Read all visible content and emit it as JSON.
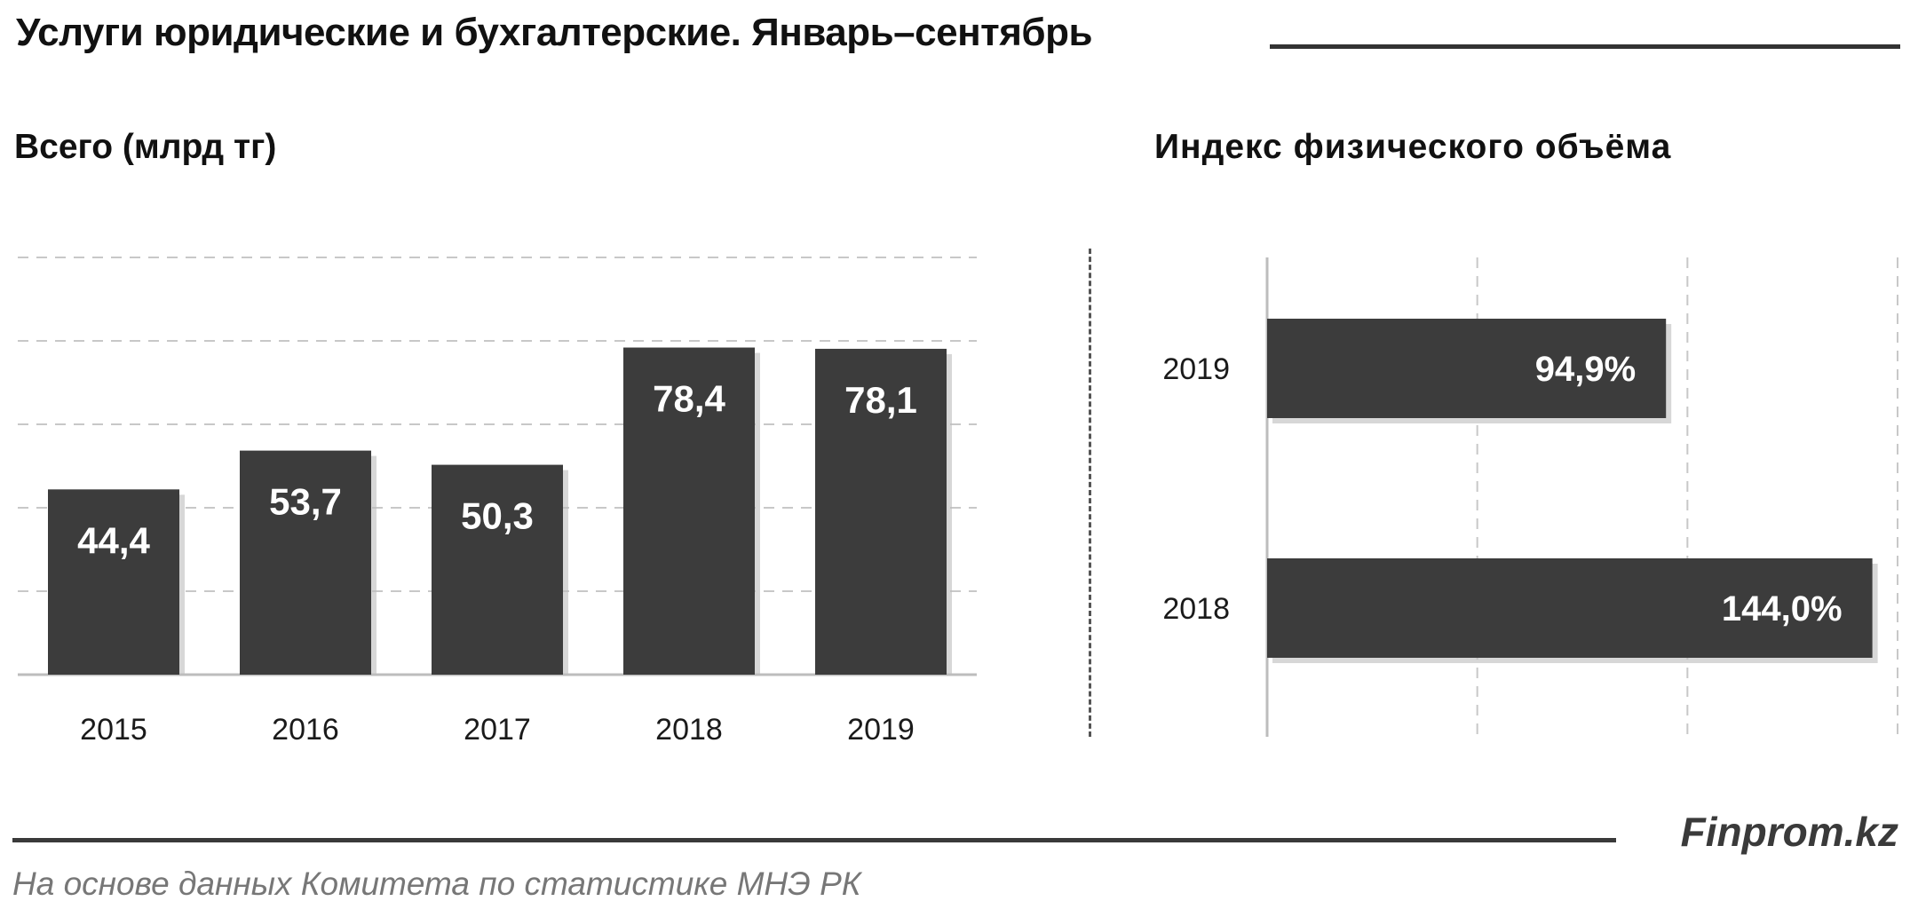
{
  "title": "Услуги юридические и бухгалтерские. Январь–сентябрь",
  "source": "На основе данных Комитета по статистике МНЭ РК",
  "brand": "Finprom.kz",
  "colors": {
    "bar": "#3c3c3c",
    "grid": "#c8c8c8",
    "label": "#ffffff"
  },
  "chart_data": [
    {
      "type": "bar",
      "title": "Всего (млрд тг)",
      "categories": [
        "2015",
        "2016",
        "2017",
        "2018",
        "2019"
      ],
      "values": [
        44.4,
        53.7,
        50.3,
        78.4,
        78.1
      ],
      "labels": [
        "44,4",
        "53,7",
        "50,3",
        "78,4",
        "78,1"
      ],
      "ylim": [
        0,
        100
      ],
      "grid": true
    },
    {
      "type": "bar",
      "orientation": "horizontal",
      "title": "Индекс физического объёма",
      "categories": [
        "2019",
        "2018"
      ],
      "values": [
        94.9,
        144.0
      ],
      "labels": [
        "94,9%",
        "144,0%"
      ],
      "xlim": [
        0,
        150
      ],
      "grid": true
    }
  ]
}
